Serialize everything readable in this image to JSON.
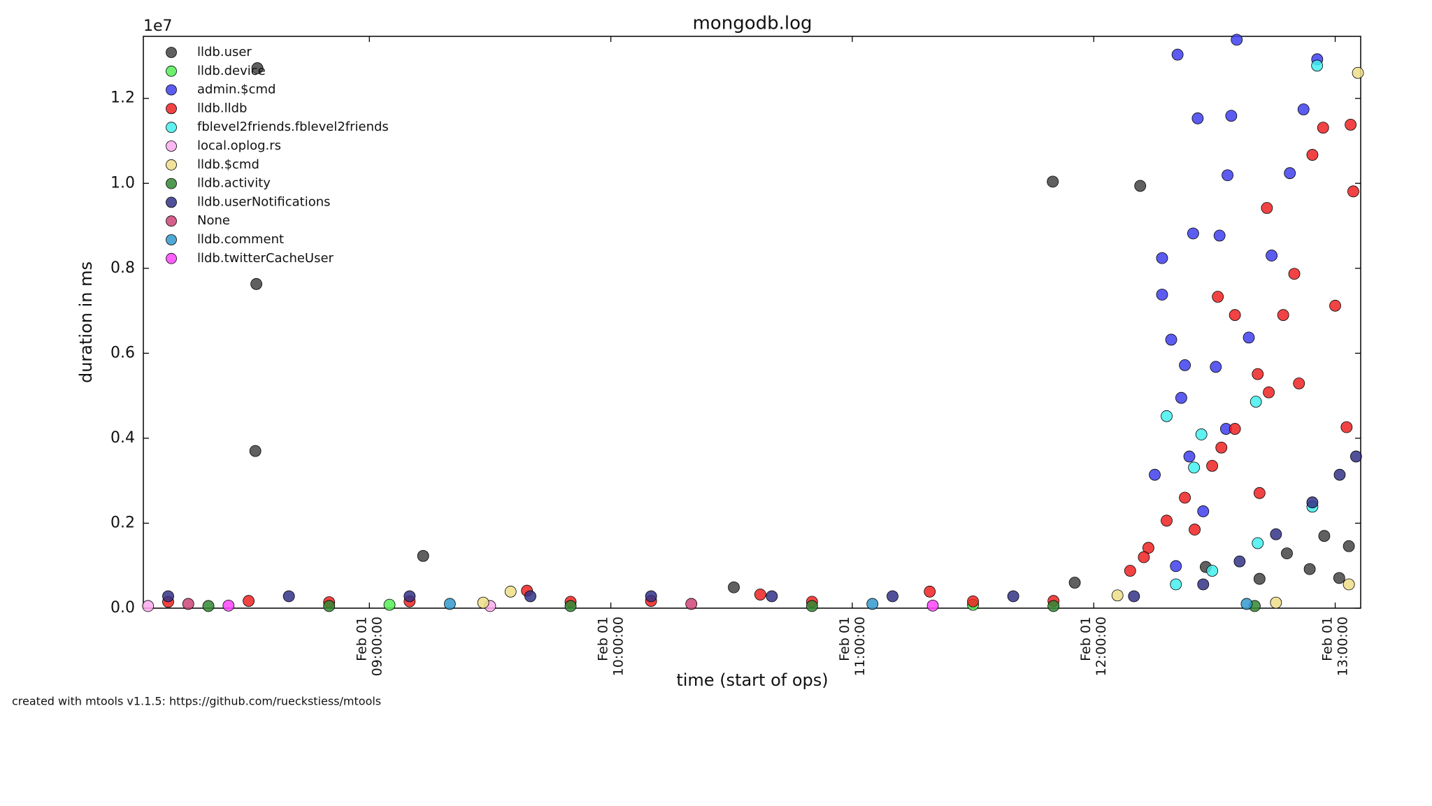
{
  "chart_data": {
    "type": "scatter",
    "title": "mongodb.log",
    "x_label": "time (start of ops)",
    "y_label": "duration in ms",
    "y_offset_label": "1e7",
    "footer": "created with mtools v1.1.5: https://github.com/rueckstiess/mtools",
    "xlim": [
      "Feb 01 08:03:50",
      "Feb 01 13:06:20"
    ],
    "xticks": [
      "Feb 01 09:00:00",
      "Feb 01 10:00:00",
      "Feb 01 11:00:00",
      "Feb 01 12:00:00",
      "Feb 01 13:00:00"
    ],
    "ylim": [
      0,
      13460000
    ],
    "yticks": [
      {
        "value": 0,
        "label": "0.0"
      },
      {
        "value": 2000000,
        "label": "0.2"
      },
      {
        "value": 4000000,
        "label": "0.4"
      },
      {
        "value": 6000000,
        "label": "0.6"
      },
      {
        "value": 8000000,
        "label": "0.8"
      },
      {
        "value": 10000000,
        "label": "1.0"
      },
      {
        "value": 12000000,
        "label": "1.2"
      }
    ],
    "legend": "upper left",
    "series": [
      {
        "name": "lldb.user",
        "color": "#444444",
        "x": [
          "Feb 01 08:32:10",
          "Feb 01 08:31:55",
          "Feb 01 08:31:40",
          "Feb 01 09:13:22",
          "Feb 01 10:30:34",
          "Feb 01 11:49:49",
          "Feb 01 12:11:33",
          "Feb 01 11:55:17",
          "Feb 01 12:57:17",
          "Feb 01 13:03:24",
          "Feb 01 12:48:00",
          "Feb 01 12:53:40",
          "Feb 01 12:41:12",
          "Feb 01 13:01:00",
          "Feb 01 12:27:50"
        ],
        "values": [
          12710000,
          7630000,
          3700000,
          1230000,
          490000,
          10040000,
          9940000,
          600000,
          1700000,
          1460000,
          1290000,
          920000,
          690000,
          710000,
          970000
        ]
      },
      {
        "name": "lldb.device",
        "color": "#55ee55",
        "x": [
          "Feb 01 09:05:00",
          "Feb 01 11:30:00"
        ],
        "values": [
          80000,
          80000
        ]
      },
      {
        "name": "admin.$cmd",
        "color": "#3f3fee",
        "x": [
          "Feb 01 12:20:50",
          "Feb 01 12:25:50",
          "Feb 01 12:35:32",
          "Feb 01 12:34:10",
          "Feb 01 12:33:15",
          "Feb 01 12:31:16",
          "Feb 01 12:24:42",
          "Feb 01 12:16:59",
          "Feb 01 12:16:59",
          "Feb 01 12:19:15",
          "Feb 01 12:22:39",
          "Feb 01 12:21:45",
          "Feb 01 12:15:10",
          "Feb 01 12:23:46",
          "Feb 01 12:30:20",
          "Feb 01 12:20:25",
          "Feb 01 12:27:12",
          "Feb 01 12:32:52",
          "Feb 01 12:38:32",
          "Feb 01 12:44:12",
          "Feb 01 12:48:44",
          "Feb 01 12:52:08",
          "Feb 01 12:55:32"
        ],
        "values": [
          13030000,
          11530000,
          13380000,
          11590000,
          10190000,
          8770000,
          8820000,
          8240000,
          7380000,
          6320000,
          5720000,
          4950000,
          3140000,
          3570000,
          5680000,
          990000,
          2280000,
          4220000,
          6370000,
          8300000,
          10240000,
          11740000,
          12920000
        ]
      },
      {
        "name": "lldb.lldb",
        "color": "#ee2222",
        "x": [
          "Feb 01 08:10:00",
          "Feb 01 08:30:00",
          "Feb 01 08:50:00",
          "Feb 01 09:10:00",
          "Feb 01 09:39:10",
          "Feb 01 09:50:00",
          "Feb 01 10:10:00",
          "Feb 01 10:37:08",
          "Feb 01 10:50:00",
          "Feb 01 11:19:15",
          "Feb 01 11:30:00",
          "Feb 01 11:50:00",
          "Feb 01 12:09:03",
          "Feb 01 12:13:35",
          "Feb 01 12:18:07",
          "Feb 01 12:22:39",
          "Feb 01 12:29:26",
          "Feb 01 12:35:05",
          "Feb 01 12:40:45",
          "Feb 01 12:43:30",
          "Feb 01 12:47:05",
          "Feb 01 12:49:50",
          "Feb 01 12:54:20",
          "Feb 01 12:57:00",
          "Feb 01 13:03:50",
          "Feb 01 12:43:02",
          "Feb 01 12:51:00",
          "Feb 01 13:00:00",
          "Feb 01 13:02:50",
          "Feb 01 12:35:05",
          "Feb 01 12:30:50",
          "Feb 01 12:41:12",
          "Feb 01 12:31:43",
          "Feb 01 12:25:05",
          "Feb 01 12:12:27",
          "Feb 01 13:04:30"
        ],
        "values": [
          150000,
          170000,
          140000,
          160000,
          410000,
          150000,
          170000,
          320000,
          150000,
          390000,
          160000,
          170000,
          880000,
          1420000,
          2060000,
          2600000,
          3350000,
          4220000,
          5510000,
          5080000,
          6900000,
          7870000,
          10670000,
          11310000,
          11380000,
          9420000,
          5290000,
          7120000,
          4260000,
          6900000,
          7330000,
          2710000,
          3780000,
          1850000,
          1200000,
          9810000
        ]
      },
      {
        "name": "fblevel2friends.fblevel2friends",
        "color": "#44eeee",
        "x": [
          "Feb 01 12:18:07",
          "Feb 01 12:26:45",
          "Feb 01 12:24:55",
          "Feb 01 12:55:30",
          "Feb 01 12:40:18",
          "Feb 01 12:20:25",
          "Feb 01 12:29:26",
          "Feb 01 12:40:45",
          "Feb 01 12:54:20"
        ],
        "values": [
          4520000,
          4090000,
          3310000,
          12770000,
          4860000,
          560000,
          880000,
          1530000,
          2390000
        ]
      },
      {
        "name": "local.oplog.rs",
        "color": "#ffaaee",
        "x": [
          "Feb 01 08:05:00",
          "Feb 01 09:30:00"
        ],
        "values": [
          50000,
          50000
        ]
      },
      {
        "name": "lldb.$cmd",
        "color": "#eedd88",
        "x": [
          "Feb 01 09:35:06",
          "Feb 01 13:05:39",
          "Feb 01 13:03:24",
          "Feb 01 09:28:18",
          "Feb 01 12:05:54",
          "Feb 01 12:45:17"
        ],
        "values": [
          390000,
          12600000,
          560000,
          130000,
          300000,
          130000
        ]
      },
      {
        "name": "lldb.activity",
        "color": "#338833",
        "x": [
          "Feb 01 08:20:00",
          "Feb 01 08:50:00",
          "Feb 01 09:50:00",
          "Feb 01 10:50:00",
          "Feb 01 11:50:00",
          "Feb 01 12:40:00"
        ],
        "values": [
          50000,
          50000,
          50000,
          50000,
          50000,
          50000
        ]
      },
      {
        "name": "lldb.userNotifications",
        "color": "#333388",
        "x": [
          "Feb 01 08:10:00",
          "Feb 01 08:40:00",
          "Feb 01 09:10:00",
          "Feb 01 09:40:00",
          "Feb 01 10:10:00",
          "Feb 01 10:40:00",
          "Feb 01 11:10:00",
          "Feb 01 11:40:00",
          "Feb 01 12:10:00",
          "Feb 01 12:27:12",
          "Feb 01 12:36:15",
          "Feb 01 12:45:17",
          "Feb 01 12:54:20",
          "Feb 01 13:01:07",
          "Feb 01 13:05:11"
        ],
        "values": [
          280000,
          280000,
          280000,
          280000,
          280000,
          280000,
          280000,
          280000,
          280000,
          560000,
          1100000,
          1740000,
          2490000,
          3140000,
          3570000
        ]
      },
      {
        "name": "None",
        "color": "#cc4477",
        "x": [
          "Feb 01 08:15:00",
          "Feb 01 10:20:00"
        ],
        "values": [
          100000,
          100000
        ]
      },
      {
        "name": "lldb.comment",
        "color": "#3399cc",
        "x": [
          "Feb 01 09:20:00",
          "Feb 01 11:05:00",
          "Feb 01 12:38:00"
        ],
        "values": [
          100000,
          100000,
          100000
        ]
      },
      {
        "name": "lldb.twitterCacheUser",
        "color": "#ff44ff",
        "x": [
          "Feb 01 08:25:00",
          "Feb 01 11:20:00"
        ],
        "values": [
          60000,
          60000
        ]
      }
    ]
  }
}
